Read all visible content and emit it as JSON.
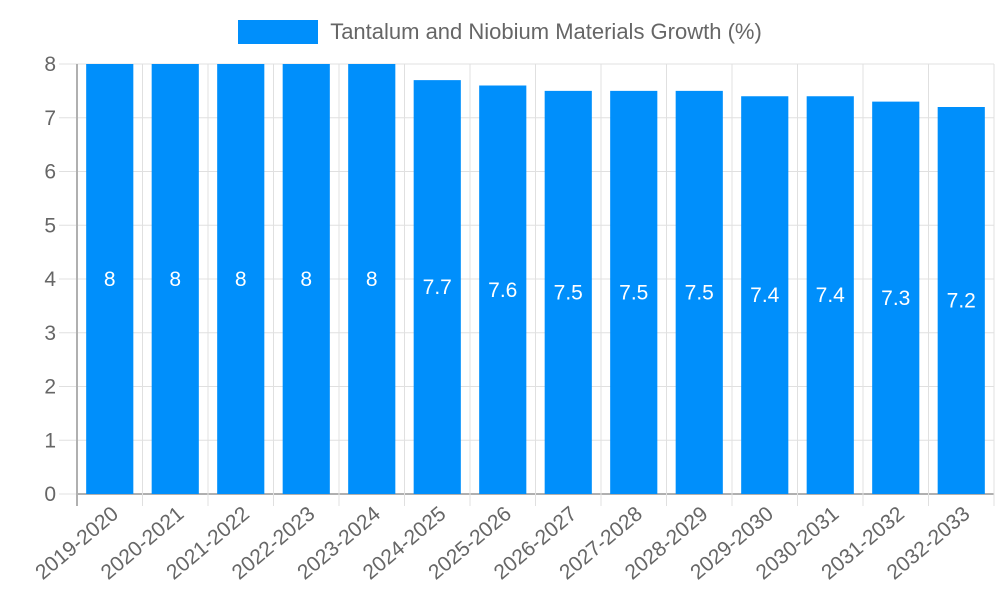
{
  "legend": {
    "label": "Tantalum and Niobium Materials Growth (%)",
    "color": "#008ffb"
  },
  "chart_data": {
    "type": "bar",
    "title": "",
    "xlabel": "",
    "ylabel": "",
    "legend": [
      "Tantalum and Niobium Materials Growth (%)"
    ],
    "legend_position": "top",
    "grid": true,
    "ylim": [
      0,
      8
    ],
    "yticks": [
      0,
      1,
      2,
      3,
      4,
      5,
      6,
      7,
      8
    ],
    "categories": [
      "2019-2020",
      "2020-2021",
      "2021-2022",
      "2022-2023",
      "2023-2024",
      "2024-2025",
      "2025-2026",
      "2026-2027",
      "2027-2028",
      "2028-2029",
      "2029-2030",
      "2030-2031",
      "2031-2032",
      "2032-2033"
    ],
    "series": [
      {
        "name": "Tantalum and Niobium Materials Growth (%)",
        "color": "#008ffb",
        "values": [
          8,
          8,
          8,
          8,
          8,
          7.7,
          7.6,
          7.5,
          7.5,
          7.5,
          7.4,
          7.4,
          7.3,
          7.2
        ]
      }
    ]
  }
}
